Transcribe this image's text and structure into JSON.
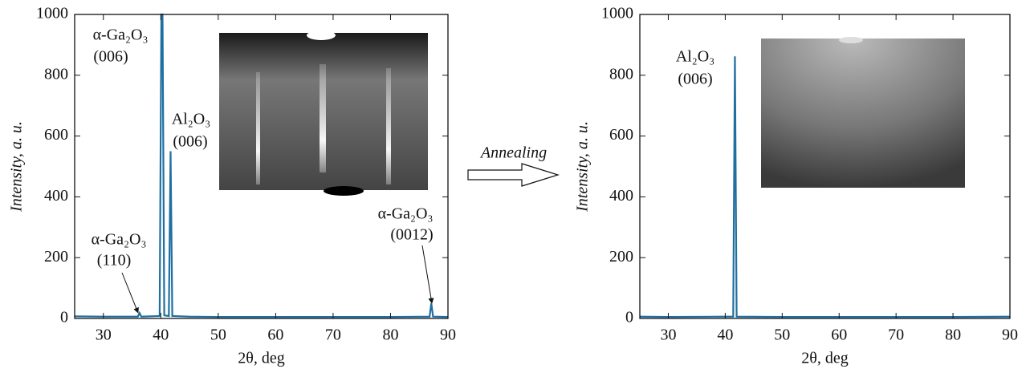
{
  "arrow_label": "Annealing",
  "chart_data": [
    {
      "type": "line",
      "xlabel": "2θ, deg",
      "ylabel": "Intensity, a. u.",
      "xlim": [
        25,
        90
      ],
      "ylim": [
        0,
        1000
      ],
      "xticks": [
        30,
        40,
        50,
        60,
        70,
        80,
        90
      ],
      "yticks": [
        0,
        200,
        400,
        600,
        800,
        1000
      ],
      "x": [
        25,
        30,
        35,
        36.0,
        36.3,
        36.6,
        39.8,
        40.1,
        40.3,
        40.6,
        41.4,
        41.7,
        42.0,
        45,
        50,
        60,
        70,
        80,
        86.8,
        87.1,
        87.4,
        90
      ],
      "series": [
        {
          "color": "#1f6fa0",
          "values": [
            7,
            6,
            6,
            6,
            18,
            6,
            8,
            1000,
            1000,
            10,
            8,
            550,
            8,
            6,
            5,
            5,
            5,
            5,
            6,
            50,
            6,
            5
          ]
        }
      ],
      "annotations": [
        "α-Ga₂O₃",
        "(006)",
        "Al₂O₃",
        "(006)",
        "α-Ga₂O₃",
        "(110)",
        "α-Ga₂O₃",
        "(0012)"
      ]
    },
    {
      "type": "line",
      "xlabel": "2θ, deg",
      "ylabel": "Intensity, a. u.",
      "xlim": [
        25,
        90
      ],
      "ylim": [
        0,
        1000
      ],
      "xticks": [
        30,
        40,
        50,
        60,
        70,
        80,
        90
      ],
      "yticks": [
        0,
        200,
        400,
        600,
        800,
        1000
      ],
      "x": [
        25,
        30,
        40,
        41.4,
        41.7,
        42.0,
        50,
        60,
        70,
        80,
        90
      ],
      "series": [
        {
          "color": "#1f6fa0",
          "values": [
            6,
            5,
            6,
            6,
            862,
            6,
            5,
            5,
            5,
            5,
            6
          ]
        }
      ],
      "annotations": [
        "Al₂O₃",
        "(006)"
      ]
    }
  ]
}
